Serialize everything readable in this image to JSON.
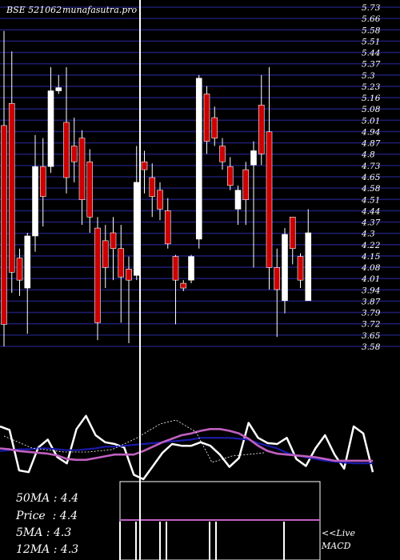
{
  "header": {
    "symbol": "BSE 521062",
    "site": "munafasutra.pro"
  },
  "colors": {
    "background": "#000000",
    "gridline": "#1c1c6e",
    "bear_candle": "#cc0000",
    "bull_candle": "#ffffff",
    "wick": "#ffffff",
    "macd_line": "#ffffff",
    "signal_line": "#1a1aaa",
    "long_ma": "#c060c0",
    "cursor_line": "#ffffff"
  },
  "stats": {
    "ma50": "50MA : 4.4",
    "price": "Price  : 4.4",
    "ma5": "5MA : 4.3",
    "ma12": "12MA : 4.3"
  },
  "legend": {
    "live": "<<Live",
    "macd": "MACD"
  },
  "chart_data": [
    {
      "type": "candlestick",
      "title": "BSE 521062 munafasutra.pro",
      "ylim": [
        3.58,
        5.73
      ],
      "y_ticks": [
        "5.73",
        "5.66",
        "5.58",
        "5.51",
        "5.44",
        "5.37",
        "5.3",
        "5.23",
        "5.16",
        "5.08",
        "5.01",
        "4.94",
        "4.87",
        "4.8",
        "4.73",
        "4.65",
        "4.58",
        "4.51",
        "4.44",
        "4.37",
        "4.3",
        "4.22",
        "4.15",
        "4.08",
        "4.01",
        "3.94",
        "3.87",
        "3.79",
        "3.72",
        "3.65",
        "3.58"
      ],
      "grid": true,
      "candles": [
        {
          "o": 4.98,
          "c": 3.72,
          "h": 5.58,
          "l": 3.58
        },
        {
          "o": 5.12,
          "c": 4.05,
          "h": 5.45,
          "l": 3.92
        },
        {
          "o": 4.14,
          "c": 4.0,
          "h": 4.2,
          "l": 3.9
        },
        {
          "o": 3.95,
          "c": 4.28,
          "h": 4.3,
          "l": 3.66
        },
        {
          "o": 4.28,
          "c": 4.72,
          "h": 4.92,
          "l": 4.18
        },
        {
          "o": 4.72,
          "c": 4.53,
          "h": 4.9,
          "l": 4.34
        },
        {
          "o": 4.72,
          "c": 5.2,
          "h": 5.35,
          "l": 4.68
        },
        {
          "o": 5.2,
          "c": 5.22,
          "h": 5.3,
          "l": 5.18
        },
        {
          "o": 5.0,
          "c": 4.65,
          "h": 5.35,
          "l": 4.55
        },
        {
          "o": 4.85,
          "c": 4.75,
          "h": 5.03,
          "l": 4.62
        },
        {
          "o": 4.9,
          "c": 4.51,
          "h": 4.95,
          "l": 4.35
        },
        {
          "o": 4.75,
          "c": 4.4,
          "h": 4.83,
          "l": 4.3
        },
        {
          "o": 4.33,
          "c": 3.73,
          "h": 4.4,
          "l": 3.62
        },
        {
          "o": 4.25,
          "c": 4.08,
          "h": 4.35,
          "l": 3.95
        },
        {
          "o": 4.3,
          "c": 4.2,
          "h": 4.4,
          "l": 4.0
        },
        {
          "o": 4.2,
          "c": 4.02,
          "h": 4.35,
          "l": 3.73
        },
        {
          "o": 4.07,
          "c": 4.0,
          "h": 4.15,
          "l": 3.6
        },
        {
          "o": 4.03,
          "c": 4.62,
          "h": 4.85,
          "l": 4.0
        },
        {
          "o": 4.75,
          "c": 4.7,
          "h": 4.82,
          "l": 4.55
        },
        {
          "o": 4.65,
          "c": 4.53,
          "h": 4.74,
          "l": 4.4
        },
        {
          "o": 4.57,
          "c": 4.45,
          "h": 4.62,
          "l": 4.38
        },
        {
          "o": 4.44,
          "c": 4.23,
          "h": 4.52,
          "l": 4.2
        },
        {
          "o": 4.15,
          "c": 4.0,
          "h": 4.16,
          "l": 3.72
        },
        {
          "o": 3.98,
          "c": 3.95,
          "h": 4.0,
          "l": 3.93
        },
        {
          "o": 4.0,
          "c": 4.15,
          "h": 4.16,
          "l": 3.98
        },
        {
          "o": 4.26,
          "c": 5.28,
          "h": 5.3,
          "l": 4.2
        },
        {
          "o": 5.18,
          "c": 4.88,
          "h": 5.23,
          "l": 4.8
        },
        {
          "o": 5.03,
          "c": 4.9,
          "h": 5.1,
          "l": 4.85
        },
        {
          "o": 4.85,
          "c": 4.75,
          "h": 4.9,
          "l": 4.7
        },
        {
          "o": 4.72,
          "c": 4.6,
          "h": 4.78,
          "l": 4.57
        },
        {
          "o": 4.45,
          "c": 4.57,
          "h": 4.6,
          "l": 4.35
        },
        {
          "o": 4.7,
          "c": 4.51,
          "h": 4.75,
          "l": 4.35
        },
        {
          "o": 4.73,
          "c": 4.82,
          "h": 4.88,
          "l": 4.08
        },
        {
          "o": 5.11,
          "c": 4.8,
          "h": 5.3,
          "l": 4.73
        },
        {
          "o": 4.94,
          "c": 4.08,
          "h": 5.35,
          "l": 3.94
        },
        {
          "o": 4.08,
          "c": 3.94,
          "h": 4.2,
          "l": 3.64
        },
        {
          "o": 3.87,
          "c": 4.29,
          "h": 4.33,
          "l": 3.79
        },
        {
          "o": 4.4,
          "c": 4.2,
          "h": 4.4,
          "l": 4.1
        },
        {
          "o": 4.15,
          "c": 4.0,
          "h": 4.17,
          "l": 3.95
        },
        {
          "o": 3.87,
          "c": 4.3,
          "h": 4.45,
          "l": 3.87
        }
      ]
    },
    {
      "type": "line",
      "title": "MACD",
      "series": [
        {
          "values": [
            0.7,
            0.66,
            0.2,
            0.18,
            0.46,
            0.55,
            0.35,
            0.28,
            0.67,
            0.82,
            0.6,
            0.52,
            0.5,
            0.46,
            0.15,
            0.1,
            0.25,
            0.4,
            0.5,
            0.48,
            0.48,
            0.52,
            0.48,
            0.38,
            0.24,
            0.34,
            0.74,
            0.57,
            0.51,
            0.5,
            0.57,
            0.33,
            0.25,
            0.45,
            0.6,
            0.38,
            0.22,
            0.7,
            0.62,
            0.18
          ]
        },
        {
          "values": [
            0.42,
            0.43,
            0.44,
            0.44,
            0.45,
            0.45,
            0.44,
            0.43,
            0.43,
            0.44,
            0.45,
            0.47,
            0.47,
            0.48,
            0.49,
            0.5,
            0.51,
            0.52,
            0.53,
            0.54,
            0.55,
            0.57,
            0.57,
            0.57,
            0.57,
            0.56,
            0.55,
            0.51,
            0.48,
            0.45,
            0.4,
            0.37,
            0.35,
            0.33,
            0.31,
            0.3,
            0.29,
            0.28,
            0.28,
            0.28
          ]
        },
        {
          "values": [
            0.45,
            0.44,
            0.42,
            0.41,
            0.4,
            0.39,
            0.37,
            0.33,
            0.32,
            0.32,
            0.34,
            0.36,
            0.38,
            0.38,
            0.38,
            0.42,
            0.47,
            0.52,
            0.56,
            0.6,
            0.62,
            0.65,
            0.67,
            0.67,
            0.65,
            0.62,
            0.56,
            0.48,
            0.42,
            0.39,
            0.38,
            0.37,
            0.36,
            0.35,
            0.33,
            0.31,
            0.31,
            0.31,
            0.31,
            0.31
          ]
        }
      ]
    }
  ]
}
